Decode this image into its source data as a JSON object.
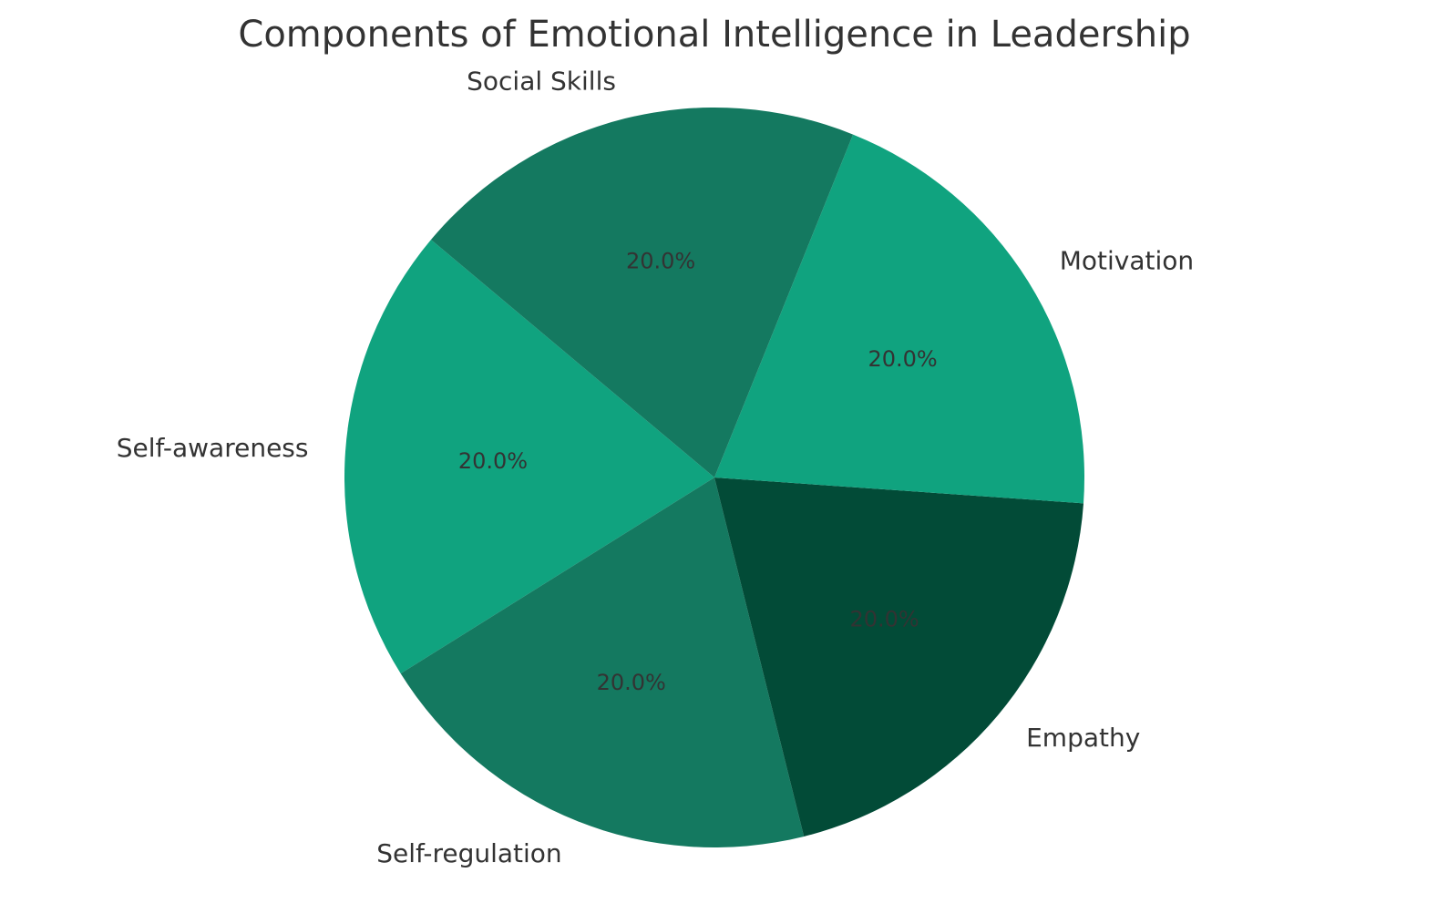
{
  "chart_data": {
    "type": "pie",
    "title": "Components of Emotional Intelligence in Leadership",
    "categories": [
      "Self-awareness",
      "Self-regulation",
      "Empathy",
      "Motivation",
      "Social Skills"
    ],
    "values": [
      20,
      20,
      20,
      20,
      20
    ],
    "value_labels": [
      "20.0%",
      "20.0%",
      "20.0%",
      "20.0%",
      "20.0%"
    ],
    "colors": [
      "#10a37f",
      "#147960",
      "#024b37",
      "#10a37f",
      "#147960"
    ],
    "startangle": 140
  }
}
